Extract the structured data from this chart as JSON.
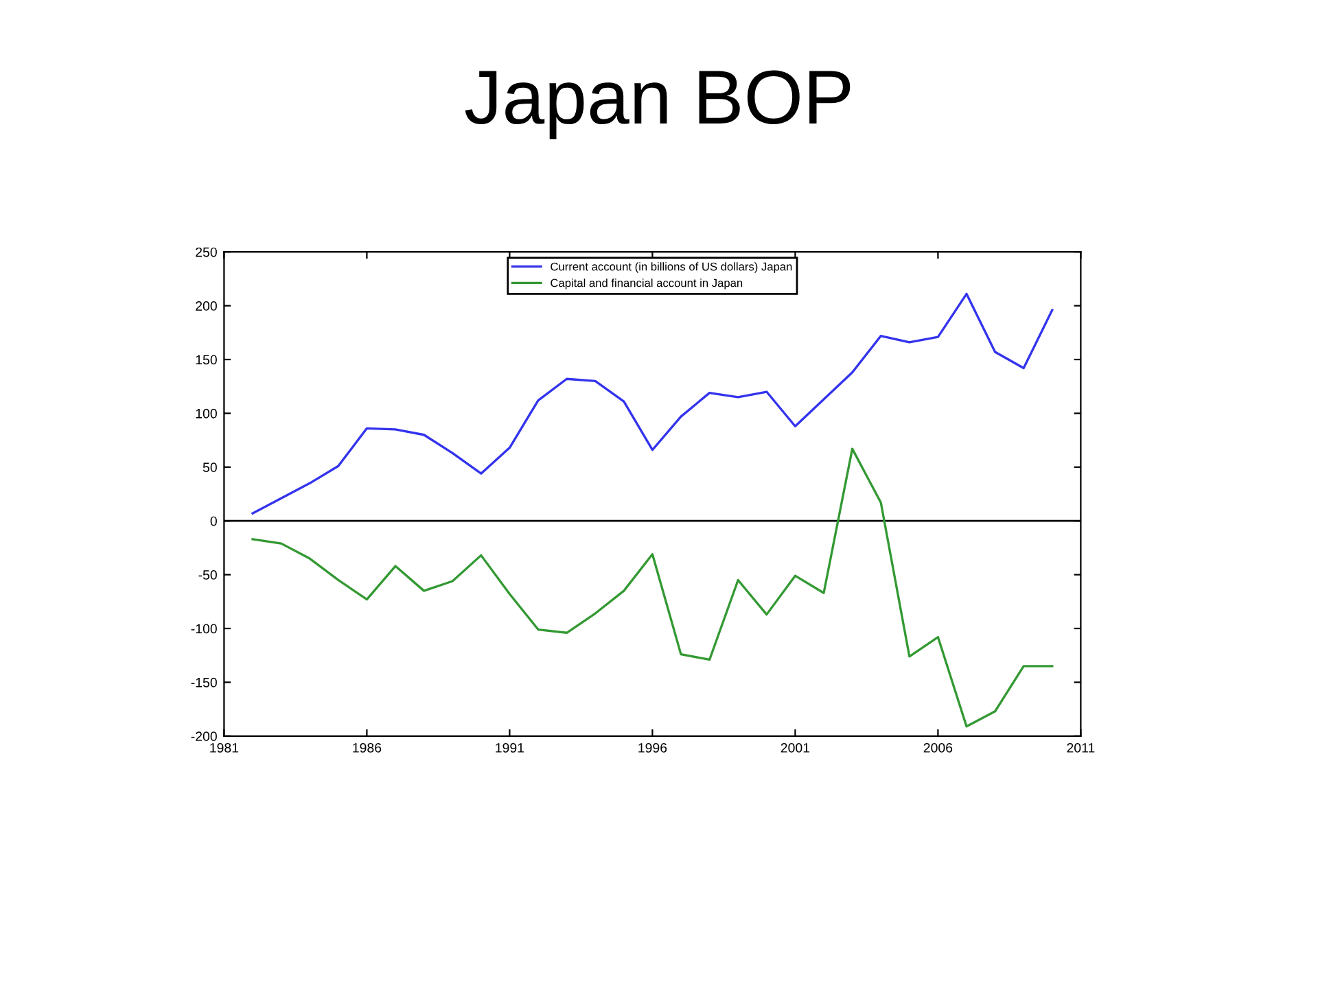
{
  "chart_data": {
    "type": "line",
    "title": "Japan BOP",
    "x": [
      1982,
      1983,
      1984,
      1985,
      1986,
      1987,
      1988,
      1989,
      1990,
      1991,
      1992,
      1993,
      1994,
      1995,
      1996,
      1997,
      1998,
      1999,
      2000,
      2001,
      2002,
      2003,
      2004,
      2005,
      2006,
      2007,
      2008,
      2009,
      2010
    ],
    "series": [
      {
        "name": "Current account (in billions of US dollars) Japan",
        "color": "#3333ee",
        "values": [
          7,
          21,
          35,
          51,
          86,
          85,
          80,
          63,
          44,
          68,
          112,
          132,
          130,
          111,
          66,
          97,
          119,
          115,
          120,
          88,
          113,
          138,
          172,
          166,
          171,
          211,
          157,
          142,
          196
        ]
      },
      {
        "name": "Capital and financial account in Japan",
        "color": "#339933",
        "values": [
          -17,
          -21,
          -35,
          -55,
          -73,
          -42,
          -65,
          -56,
          -32,
          -68,
          -101,
          -104,
          -86,
          -65,
          -31,
          -124,
          -129,
          -55,
          -87,
          -51,
          -67,
          67,
          17,
          -126,
          -108,
          -191,
          -177,
          -135,
          -135
        ]
      }
    ],
    "xlim": [
      1981,
      2011
    ],
    "xticks": [
      1981,
      1986,
      1991,
      1996,
      2001,
      2006,
      2011
    ],
    "ylim": [
      -200,
      250
    ],
    "yticks": [
      -200,
      -150,
      -100,
      -50,
      0,
      50,
      100,
      150,
      200,
      250
    ],
    "ref_lines": [
      {
        "axis": "y",
        "value": 0,
        "color": "#000000"
      }
    ],
    "grid": false,
    "legend": "top",
    "line_style": "solid",
    "marker": "none"
  }
}
